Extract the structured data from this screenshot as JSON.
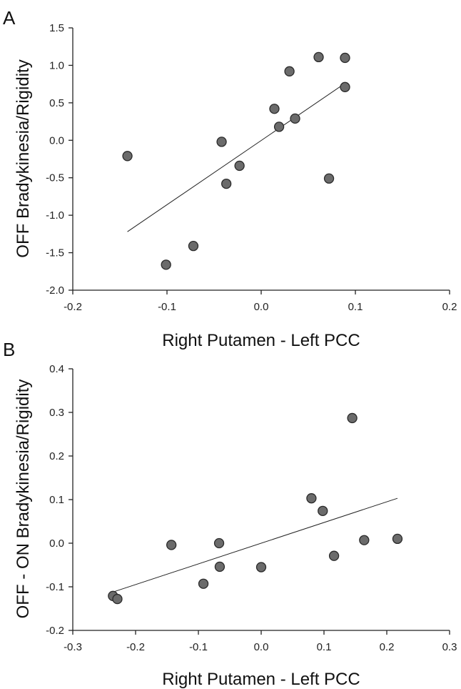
{
  "chart_data": [
    {
      "type": "scatter",
      "panel_label": "A",
      "xlabel": "Right Putamen - Left PCC",
      "ylabel": "OFF Bradykinesia/Rigidity",
      "xlim": [
        -0.2,
        0.2
      ],
      "ylim": [
        -2.0,
        1.5
      ],
      "xticks": [
        "-0.2",
        "-0.1",
        "0.0",
        "0.1",
        "0.2"
      ],
      "xtick_values": [
        -0.2,
        -0.1,
        0.0,
        0.1,
        0.2
      ],
      "yticks": [
        "1.5",
        "1.0",
        "0.5",
        "0.0",
        "-0.5",
        "-1.0",
        "-1.5",
        "-2.0"
      ],
      "ytick_values": [
        1.5,
        1.0,
        0.5,
        0.0,
        -0.5,
        -1.0,
        -1.5,
        -2.0
      ],
      "points": [
        {
          "x": -0.142,
          "y": -0.21
        },
        {
          "x": -0.101,
          "y": -1.66
        },
        {
          "x": -0.072,
          "y": -1.41
        },
        {
          "x": -0.042,
          "y": -0.02
        },
        {
          "x": -0.037,
          "y": -0.58
        },
        {
          "x": -0.023,
          "y": -0.34
        },
        {
          "x": 0.014,
          "y": 0.42
        },
        {
          "x": 0.019,
          "y": 0.18
        },
        {
          "x": 0.03,
          "y": 0.92
        },
        {
          "x": 0.036,
          "y": 0.29
        },
        {
          "x": 0.061,
          "y": 1.11
        },
        {
          "x": 0.072,
          "y": -0.51
        },
        {
          "x": 0.089,
          "y": 1.1
        },
        {
          "x": 0.089,
          "y": 0.71
        }
      ],
      "trendline": {
        "x": [
          -0.142,
          0.089
        ],
        "y": [
          -1.22,
          0.76
        ]
      },
      "grid": false,
      "legend": "none"
    },
    {
      "type": "scatter",
      "panel_label": "B",
      "xlabel": "Right Putamen - Left PCC",
      "ylabel": "OFF - ON Bradykinesia/Rigidity",
      "xlim": [
        -0.3,
        0.3
      ],
      "ylim": [
        -0.2,
        0.4
      ],
      "xticks": [
        "-0.3",
        "-0.2",
        "-0.1",
        "0.0",
        "0.1",
        "0.2",
        "0.3"
      ],
      "xtick_values": [
        -0.3,
        -0.2,
        -0.1,
        0.0,
        0.1,
        0.2,
        0.3
      ],
      "yticks": [
        "0.4",
        "0.3",
        "0.2",
        "0.1",
        "0.0",
        "-0.1",
        "-0.2"
      ],
      "ytick_values": [
        0.4,
        0.3,
        0.2,
        0.1,
        0.0,
        -0.1,
        -0.2
      ],
      "points": [
        {
          "x": -0.236,
          "y": -0.121
        },
        {
          "x": -0.229,
          "y": -0.128
        },
        {
          "x": -0.143,
          "y": -0.004
        },
        {
          "x": -0.092,
          "y": -0.093
        },
        {
          "x": -0.067,
          "y": 0.0
        },
        {
          "x": -0.066,
          "y": -0.054
        },
        {
          "x": 0.0,
          "y": -0.055
        },
        {
          "x": 0.08,
          "y": 0.103
        },
        {
          "x": 0.098,
          "y": 0.074
        },
        {
          "x": 0.116,
          "y": -0.029
        },
        {
          "x": 0.145,
          "y": 0.287
        },
        {
          "x": 0.164,
          "y": 0.007
        },
        {
          "x": 0.217,
          "y": 0.01
        }
      ],
      "trendline": {
        "x": [
          -0.236,
          0.217
        ],
        "y": [
          -0.112,
          0.103
        ]
      },
      "grid": false,
      "legend": "none"
    }
  ]
}
